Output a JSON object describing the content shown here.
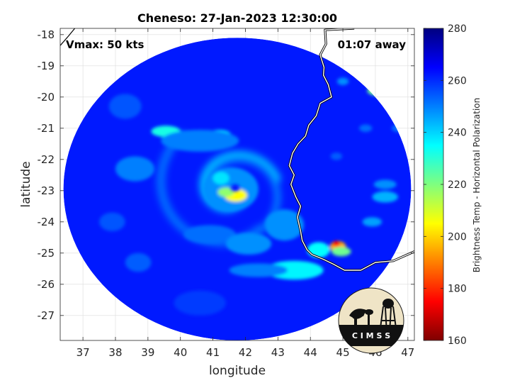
{
  "title": "Cheneso: 27-Jan-2023 12:30:00",
  "vmax_label": "Vmax: 50 kts",
  "offset_label": "01:07 away",
  "xlabel": "longitude",
  "ylabel": "latitude",
  "colorbar_label": "Brightness Temp - Horizontal Polarization",
  "logo_text": "CIMSS",
  "map": {
    "xlim": [
      36.3,
      47.2
    ],
    "ylim": [
      -27.8,
      -17.8
    ],
    "x_ticks": [
      37,
      38,
      39,
      40,
      41,
      42,
      43,
      44,
      45,
      46,
      47
    ],
    "y_ticks": [
      -18,
      -19,
      -20,
      -21,
      -22,
      -23,
      -24,
      -25,
      -26,
      -27
    ],
    "swath": {
      "center_lon": 41.75,
      "center_lat": -22.95,
      "radius_lon": 5.35,
      "radius_lat": 4.85
    },
    "storm_center": {
      "lon": 41.6,
      "lat": -23.0
    },
    "coastline": [
      [
        45.35,
        -17.8
      ],
      [
        44.45,
        -17.85
      ],
      [
        44.48,
        -18.3
      ],
      [
        44.3,
        -18.65
      ],
      [
        44.42,
        -19.05
      ],
      [
        44.4,
        -19.3
      ],
      [
        44.55,
        -19.6
      ],
      [
        44.65,
        -20.0
      ],
      [
        44.3,
        -20.2
      ],
      [
        44.18,
        -20.6
      ],
      [
        43.95,
        -20.9
      ],
      [
        43.85,
        -21.25
      ],
      [
        43.62,
        -21.5
      ],
      [
        43.45,
        -21.8
      ],
      [
        43.35,
        -22.2
      ],
      [
        43.5,
        -22.5
      ],
      [
        43.4,
        -22.8
      ],
      [
        43.55,
        -23.2
      ],
      [
        43.7,
        -23.5
      ],
      [
        43.6,
        -23.85
      ],
      [
        43.7,
        -24.3
      ],
      [
        43.75,
        -24.6
      ],
      [
        43.9,
        -24.9
      ],
      [
        44.05,
        -25.05
      ],
      [
        44.4,
        -25.2
      ],
      [
        44.7,
        -25.35
      ],
      [
        45.05,
        -25.55
      ],
      [
        45.55,
        -25.55
      ],
      [
        46.0,
        -25.3
      ],
      [
        46.55,
        -25.25
      ],
      [
        47.2,
        -24.95
      ]
    ],
    "africa_coast": [
      [
        36.3,
        -18.35
      ],
      [
        36.55,
        -18.05
      ],
      [
        36.75,
        -17.8
      ]
    ]
  },
  "colorbar": {
    "min": 160,
    "max": 280,
    "ticks": [
      160,
      180,
      200,
      220,
      240,
      260,
      280
    ],
    "colormap": [
      "#7f0000",
      "#ff0000",
      "#ff7f00",
      "#ffff00",
      "#7fff7f",
      "#00ffff",
      "#007fff",
      "#0000ff",
      "#00007f"
    ]
  },
  "features": [
    {
      "lon": 41.55,
      "lat": -22.95,
      "rlon": 0.85,
      "rlat": 0.7,
      "t": 248
    },
    {
      "lon": 41.7,
      "lat": -23.15,
      "rlon": 0.35,
      "rlat": 0.2,
      "t": 205
    },
    {
      "lon": 41.4,
      "lat": -23.05,
      "rlon": 0.25,
      "rlat": 0.15,
      "t": 218
    },
    {
      "lon": 41.25,
      "lat": -22.6,
      "rlon": 0.25,
      "rlat": 0.2,
      "t": 238
    },
    {
      "lon": 39.55,
      "lat": -21.1,
      "rlon": 0.45,
      "rlat": 0.18,
      "t": 232
    },
    {
      "lon": 41.2,
      "lat": -21.2,
      "rlon": 0.35,
      "rlat": 0.15,
      "t": 238
    },
    {
      "lon": 40.6,
      "lat": -21.4,
      "rlon": 1.2,
      "rlat": 0.35,
      "t": 250
    },
    {
      "lon": 38.6,
      "lat": -22.3,
      "rlon": 0.6,
      "rlat": 0.4,
      "t": 250
    },
    {
      "lon": 40.9,
      "lat": -24.4,
      "rlon": 0.8,
      "rlat": 0.3,
      "t": 252
    },
    {
      "lon": 43.2,
      "lat": -24.1,
      "rlon": 0.6,
      "rlat": 0.5,
      "t": 248
    },
    {
      "lon": 43.5,
      "lat": -25.55,
      "rlon": 0.9,
      "rlat": 0.3,
      "t": 236
    },
    {
      "lon": 42.4,
      "lat": -25.55,
      "rlon": 0.9,
      "rlat": 0.22,
      "t": 250
    },
    {
      "lon": 44.25,
      "lat": -24.9,
      "rlon": 0.35,
      "rlat": 0.25,
      "t": 235
    },
    {
      "lon": 44.85,
      "lat": -24.8,
      "rlon": 0.25,
      "rlat": 0.18,
      "t": 195
    },
    {
      "lon": 44.8,
      "lat": -24.7,
      "rlon": 0.12,
      "rlat": 0.09,
      "t": 175
    },
    {
      "lon": 44.95,
      "lat": -24.95,
      "rlon": 0.3,
      "rlat": 0.15,
      "t": 222
    },
    {
      "lon": 46.05,
      "lat": -19.8,
      "rlon": 0.3,
      "rlat": 0.15,
      "t": 222
    },
    {
      "lon": 45.0,
      "lat": -19.5,
      "rlon": 0.18,
      "rlat": 0.12,
      "t": 248
    },
    {
      "lon": 46.3,
      "lat": -22.8,
      "rlon": 0.35,
      "rlat": 0.15,
      "t": 248
    },
    {
      "lon": 46.3,
      "lat": -23.2,
      "rlon": 0.4,
      "rlat": 0.18,
      "t": 244
    },
    {
      "lon": 45.9,
      "lat": -24.0,
      "rlon": 0.3,
      "rlat": 0.15,
      "t": 246
    },
    {
      "lon": 46.7,
      "lat": -21.0,
      "rlon": 0.2,
      "rlat": 0.12,
      "t": 252
    },
    {
      "lon": 45.7,
      "lat": -21.0,
      "rlon": 0.2,
      "rlat": 0.12,
      "t": 252
    },
    {
      "lon": 44.8,
      "lat": -21.9,
      "rlon": 0.18,
      "rlat": 0.12,
      "t": 254
    },
    {
      "lon": 38.3,
      "lat": -20.3,
      "rlon": 0.5,
      "rlat": 0.4,
      "t": 255
    },
    {
      "lon": 37.9,
      "lat": -24.0,
      "rlon": 0.4,
      "rlat": 0.3,
      "t": 255
    },
    {
      "lon": 40.6,
      "lat": -26.6,
      "rlon": 0.8,
      "rlat": 0.4,
      "t": 258
    },
    {
      "lon": 38.7,
      "lat": -25.3,
      "rlon": 0.4,
      "rlat": 0.3,
      "t": 254
    },
    {
      "lon": 42.1,
      "lat": -24.7,
      "rlon": 0.7,
      "rlat": 0.35,
      "t": 248
    }
  ]
}
